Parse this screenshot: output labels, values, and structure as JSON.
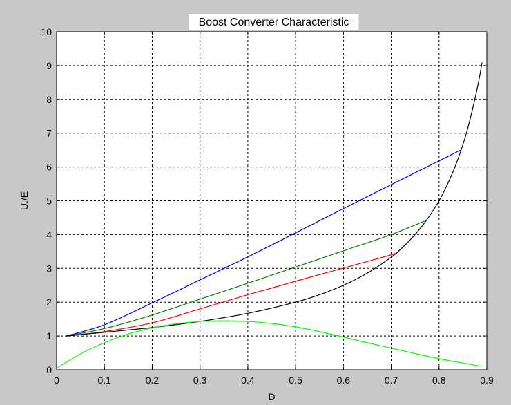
{
  "chart_data": {
    "type": "line",
    "title": "Boost Converter Characteristic",
    "xlabel": "D",
    "ylabel": "U./E",
    "xlim": [
      0,
      0.9
    ],
    "ylim": [
      0,
      10
    ],
    "xticks": [
      "0",
      "0.1",
      "0.2",
      "0.3",
      "0.4",
      "0.5",
      "0.6",
      "0.7",
      "0.8",
      "0.9"
    ],
    "yticks": [
      "0",
      "1",
      "2",
      "3",
      "4",
      "5",
      "6",
      "7",
      "8",
      "9",
      "10"
    ],
    "grid": true,
    "legend": "none",
    "colors": {
      "figure_background": "#c8c8c8",
      "axes_background": "#ffffff",
      "grid": "#000000"
    },
    "series": [
      {
        "color": "#0000ff",
        "x": [
          0.02,
          0.1,
          0.2,
          0.3,
          0.4,
          0.5,
          0.6,
          0.7,
          0.8,
          0.845
        ],
        "y": [
          1.0,
          1.33,
          1.98,
          2.66,
          3.34,
          4.05,
          4.77,
          5.48,
          6.18,
          6.5
        ]
      },
      {
        "color": "#008000",
        "x": [
          0.02,
          0.1,
          0.2,
          0.3,
          0.4,
          0.5,
          0.6,
          0.7,
          0.77
        ],
        "y": [
          1.0,
          1.22,
          1.62,
          2.09,
          2.56,
          3.04,
          3.52,
          4.0,
          4.4
        ]
      },
      {
        "color": "#ff0000",
        "x": [
          0.02,
          0.1,
          0.2,
          0.3,
          0.4,
          0.5,
          0.6,
          0.7,
          0.705
        ],
        "y": [
          1.0,
          1.13,
          1.39,
          1.8,
          2.22,
          2.62,
          3.01,
          3.4,
          3.43
        ]
      },
      {
        "color": "#000000",
        "x": [
          0.02,
          0.1,
          0.2,
          0.3,
          0.4,
          0.5,
          0.55,
          0.6,
          0.65,
          0.7,
          0.72,
          0.74,
          0.76,
          0.78,
          0.8,
          0.82,
          0.84,
          0.86,
          0.88,
          0.89
        ],
        "y": [
          1.0,
          1.11,
          1.25,
          1.43,
          1.67,
          2.0,
          2.22,
          2.5,
          2.86,
          3.33,
          3.57,
          3.85,
          4.17,
          4.55,
          5.0,
          5.56,
          6.25,
          7.14,
          8.33,
          9.09
        ]
      },
      {
        "color": "#00ff00",
        "x": [
          0.0,
          0.05,
          0.1,
          0.15,
          0.2,
          0.25,
          0.3,
          0.35,
          0.4,
          0.45,
          0.5,
          0.55,
          0.6,
          0.65,
          0.7,
          0.75,
          0.8,
          0.85,
          0.89
        ],
        "y": [
          0.05,
          0.47,
          0.8,
          1.06,
          1.24,
          1.36,
          1.43,
          1.45,
          1.43,
          1.37,
          1.27,
          1.13,
          0.97,
          0.8,
          0.64,
          0.48,
          0.33,
          0.2,
          0.1
        ]
      }
    ]
  }
}
